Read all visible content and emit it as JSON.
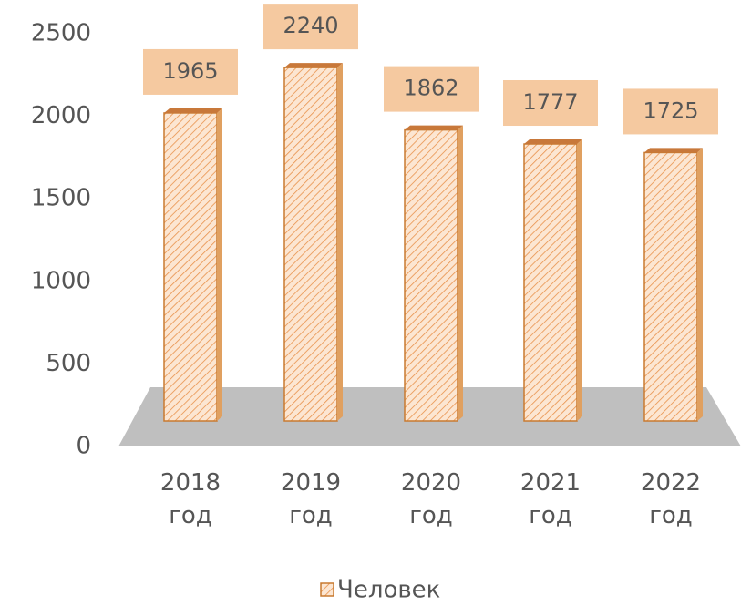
{
  "chart_data": {
    "type": "bar",
    "categories": [
      "2018 год",
      "2019 год",
      "2020 год",
      "2021 год",
      "2022 год"
    ],
    "series": [
      {
        "name": "Человек",
        "color": "#e8914a",
        "values": [
          1965,
          2240,
          1862,
          1777,
          1725
        ]
      }
    ],
    "ylim": [
      0,
      2500
    ],
    "yticks": [
      0,
      500,
      1000,
      1500,
      2000,
      2500
    ],
    "legend": "bottom"
  }
}
